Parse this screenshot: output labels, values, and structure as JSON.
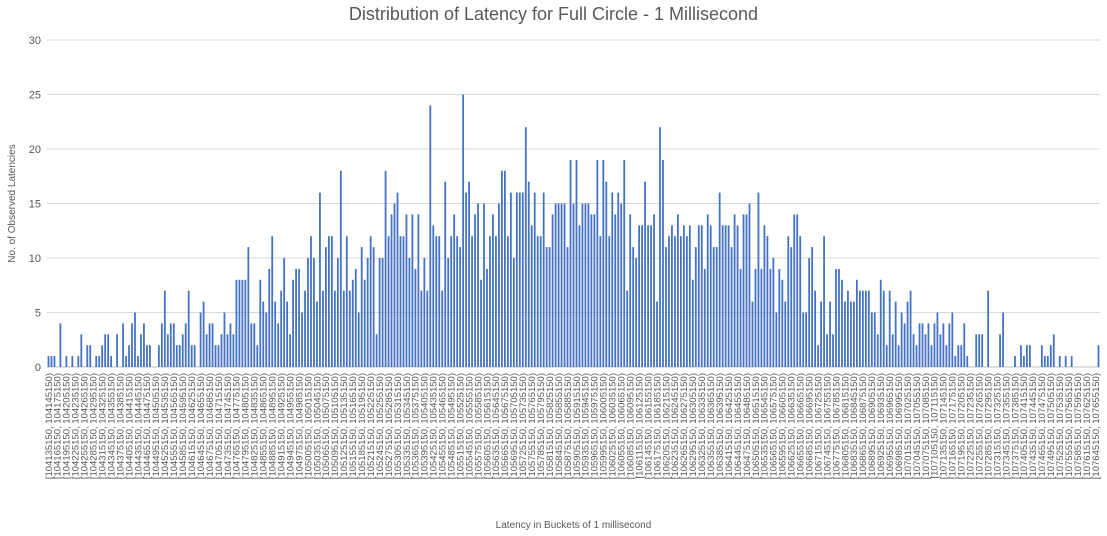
{
  "chart_data": {
    "type": "bar",
    "title": "Distribution of Latency for Full Circle - 1 Millisecond",
    "xlabel": "Latency in Buckets of 1 millisecond",
    "ylabel": "No. of Observed Latencies",
    "ylim": [
      0,
      30
    ],
    "yticks": [
      0,
      5,
      10,
      15,
      20,
      25,
      30
    ],
    "grid": true,
    "legend": "none",
    "bar_color": "#4472c4",
    "bucket_start": 104135150,
    "bucket_width": 10000,
    "label_step": 3,
    "values": [
      1,
      1,
      1,
      0,
      4,
      0,
      1,
      0,
      1,
      0,
      1,
      3,
      0,
      2,
      2,
      0,
      1,
      1,
      2,
      3,
      3,
      1,
      0,
      3,
      0,
      4,
      1,
      2,
      4,
      5,
      1,
      3,
      4,
      2,
      2,
      0,
      0,
      2,
      4,
      7,
      3,
      4,
      4,
      2,
      2,
      3,
      4,
      7,
      2,
      2,
      0,
      5,
      6,
      3,
      4,
      4,
      2,
      2,
      3,
      5,
      3,
      4,
      3,
      8,
      8,
      8,
      8,
      11,
      4,
      4,
      2,
      8,
      6,
      5,
      9,
      12,
      6,
      4,
      7,
      10,
      6,
      3,
      8,
      9,
      9,
      5,
      7,
      10,
      12,
      10,
      6,
      16,
      7,
      11,
      12,
      12,
      7,
      10,
      18,
      7,
      12,
      7,
      8,
      9,
      5,
      11,
      8,
      10,
      12,
      11,
      3,
      10,
      10,
      18,
      12,
      14,
      15,
      16,
      12,
      12,
      14,
      10,
      14,
      9,
      14,
      7,
      10,
      7,
      24,
      13,
      12,
      12,
      7,
      17,
      10,
      12,
      14,
      12,
      11,
      25,
      16,
      17,
      12,
      14,
      15,
      8,
      15,
      9,
      12,
      14,
      12,
      15,
      18,
      18,
      12,
      16,
      10,
      16,
      16,
      16,
      22,
      17,
      13,
      16,
      12,
      12,
      16,
      11,
      11,
      14,
      15,
      15,
      15,
      15,
      11,
      19,
      15,
      19,
      13,
      15,
      15,
      15,
      14,
      14,
      19,
      12,
      19,
      17,
      12,
      16,
      14,
      16,
      15,
      19,
      7,
      14,
      11,
      10,
      13,
      13,
      17,
      13,
      13,
      14,
      6,
      22,
      19,
      11,
      12,
      13,
      12,
      14,
      12,
      13,
      12,
      13,
      8,
      11,
      13,
      13,
      9,
      14,
      13,
      11,
      11,
      16,
      13,
      13,
      13,
      11,
      14,
      13,
      9,
      14,
      14,
      15,
      6,
      9,
      16,
      9,
      13,
      12,
      9,
      10,
      5,
      9,
      8,
      6,
      12,
      11,
      14,
      14,
      12,
      5,
      5,
      10,
      11,
      7,
      2,
      6,
      12,
      3,
      6,
      3,
      9,
      9,
      8,
      6,
      7,
      6,
      6,
      8,
      7,
      7,
      7,
      7,
      5,
      5,
      3,
      8,
      7,
      2,
      7,
      3,
      6,
      2,
      5,
      4,
      6,
      7,
      3,
      2,
      4,
      4,
      3,
      4,
      2,
      4,
      5,
      3,
      4,
      2,
      4,
      5,
      1,
      2,
      2,
      4,
      1,
      0,
      0,
      3,
      3,
      3,
      0,
      7,
      0,
      0,
      0,
      3,
      5,
      0,
      0,
      0,
      1,
      0,
      2,
      1,
      2,
      2,
      0,
      0,
      0,
      2,
      1,
      1,
      2,
      3,
      0,
      1,
      0,
      1,
      0,
      1,
      0,
      0,
      0,
      0,
      0,
      0,
      0,
      0,
      2
    ]
  }
}
